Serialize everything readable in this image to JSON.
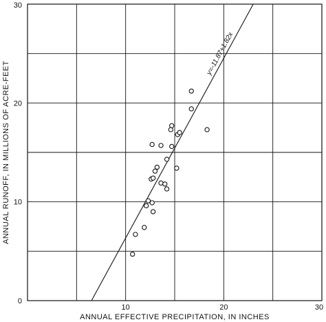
{
  "chart_data": {
    "type": "scatter",
    "title": "",
    "xlabel": "ANNUAL EFFECTIVE PRECIPITATION, IN INCHES",
    "ylabel": "ANNUAL RUNOFF, IN MILLIONS OF ACRE-FEET",
    "xlim": [
      0,
      30
    ],
    "ylim": [
      0,
      30
    ],
    "x_ticks": [
      {
        "value": 10,
        "label": "10"
      },
      {
        "value": 20,
        "label": "20"
      },
      {
        "value": 30,
        "label": "30"
      }
    ],
    "y_ticks": [
      {
        "value": 0,
        "label": "0"
      },
      {
        "value": 10,
        "label": "10"
      },
      {
        "value": 20,
        "label": "20"
      },
      {
        "value": 30,
        "label": "30"
      }
    ],
    "grid_x": [
      5,
      10,
      15,
      20,
      25
    ],
    "grid_y": [
      5,
      10,
      15,
      20,
      25
    ],
    "grid": true,
    "points": [
      {
        "x": 10.7,
        "y": 4.7
      },
      {
        "x": 11.0,
        "y": 6.7
      },
      {
        "x": 11.9,
        "y": 7.4
      },
      {
        "x": 12.1,
        "y": 9.6
      },
      {
        "x": 12.3,
        "y": 10.1
      },
      {
        "x": 12.7,
        "y": 9.9
      },
      {
        "x": 12.8,
        "y": 9.0
      },
      {
        "x": 12.6,
        "y": 12.3
      },
      {
        "x": 12.8,
        "y": 12.4
      },
      {
        "x": 13.0,
        "y": 13.1
      },
      {
        "x": 13.2,
        "y": 13.5
      },
      {
        "x": 13.6,
        "y": 11.9
      },
      {
        "x": 14.0,
        "y": 11.8
      },
      {
        "x": 14.2,
        "y": 11.3
      },
      {
        "x": 14.2,
        "y": 14.3
      },
      {
        "x": 12.7,
        "y": 15.8
      },
      {
        "x": 13.6,
        "y": 15.7
      },
      {
        "x": 14.7,
        "y": 15.6
      },
      {
        "x": 14.6,
        "y": 17.3
      },
      {
        "x": 14.7,
        "y": 17.7
      },
      {
        "x": 15.2,
        "y": 13.4
      },
      {
        "x": 15.3,
        "y": 16.8
      },
      {
        "x": 15.5,
        "y": 17.0
      },
      {
        "x": 16.7,
        "y": 19.4
      },
      {
        "x": 16.7,
        "y": 21.2
      },
      {
        "x": 18.3,
        "y": 17.3
      }
    ],
    "regression": {
      "intercept": -11.87,
      "slope": 1.82,
      "label": "y=-11.87+1.82x"
    },
    "colors": {
      "ink": "#111111",
      "background": "#ffffff"
    }
  }
}
